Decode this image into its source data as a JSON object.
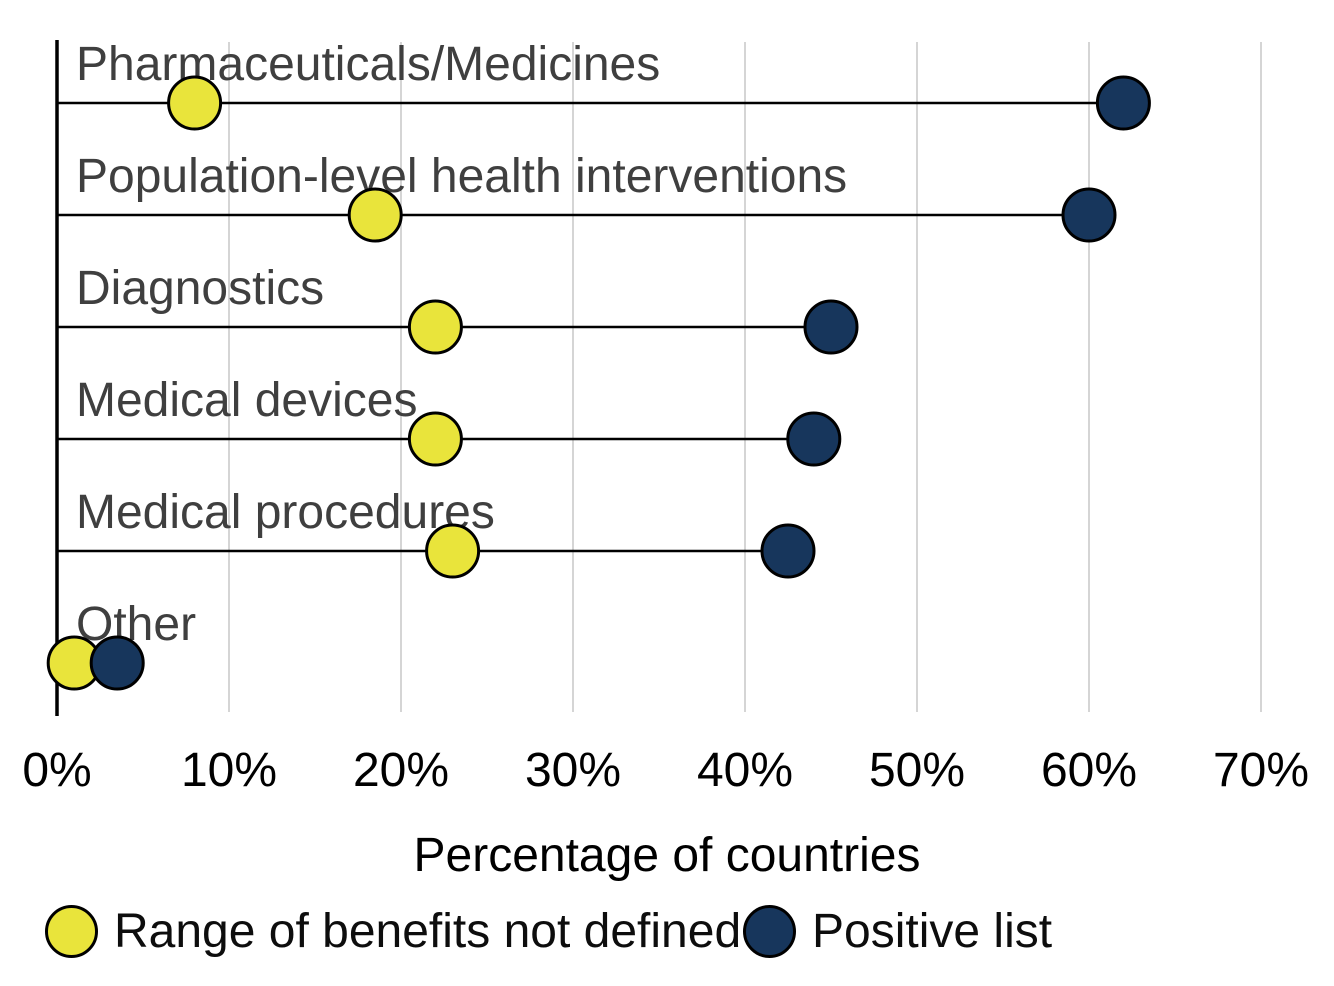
{
  "chart_data": {
    "type": "scatter",
    "variant": "dumbbell-lollipop",
    "categories": [
      "Pharmaceuticals/Medicines",
      "Population-level health interventions",
      "Diagnostics",
      "Medical devices",
      "Medical procedures",
      "Other"
    ],
    "series": [
      {
        "name": "Range of benefits not defined",
        "color": "#e9e43b",
        "values": [
          8,
          18.5,
          22,
          22,
          23,
          1
        ]
      },
      {
        "name": "Positive list",
        "color": "#17365c",
        "values": [
          62,
          60,
          45,
          44,
          42.5,
          3.5
        ]
      }
    ],
    "xlabel": "Percentage of countries",
    "xlim": [
      0,
      70
    ],
    "x_tick_values": [
      0,
      10,
      20,
      30,
      40,
      50,
      60,
      70
    ],
    "x_tick_labels": [
      "0%",
      "10%",
      "20%",
      "30%",
      "40%",
      "50%",
      "60%",
      "70%"
    ],
    "grid": "vertical",
    "legend_position": "bottom",
    "colors": {
      "background": "#ffffff",
      "gridline": "#d5d5d5",
      "axis": "#000000",
      "stem": "#000000",
      "dot_outline": "#000000",
      "category_label": "#3f3f3f",
      "tick_label": "#000000"
    }
  }
}
